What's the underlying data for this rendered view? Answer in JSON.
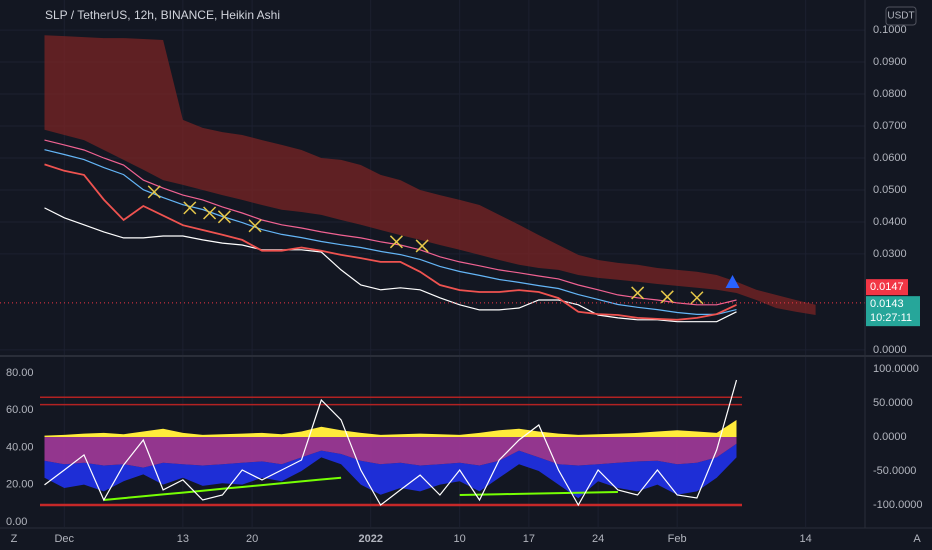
{
  "currency": "USDT",
  "buttons": [
    "Z",
    "A"
  ],
  "chart_data": [
    {
      "type": "line",
      "title": "SLP / TetherUS, 12h, BINANCE, Heikin Ashi",
      "x": [
        -2,
        0,
        2,
        4,
        6,
        8,
        10,
        12,
        14,
        16,
        18,
        20,
        22,
        24,
        26,
        28,
        30,
        32,
        34,
        36,
        38,
        40,
        42,
        44,
        46,
        48,
        50,
        52,
        54,
        56,
        58,
        60,
        62,
        64,
        66,
        68,
        70,
        72,
        74,
        76
      ],
      "xlim": [
        -6.5,
        81
      ],
      "xticks": [
        {
          "value": 0,
          "label": "Dec"
        },
        {
          "value": 12,
          "label": "13"
        },
        {
          "value": 19,
          "label": "20"
        },
        {
          "value": 31,
          "label": "2022"
        },
        {
          "value": 40,
          "label": "10"
        },
        {
          "value": 47,
          "label": "17"
        },
        {
          "value": 54,
          "label": "24"
        },
        {
          "value": 62,
          "label": "Feb"
        },
        {
          "value": 75,
          "label": "14"
        }
      ],
      "ylim": [
        -0.0016,
        0.1094
      ],
      "yticks": [
        {
          "value": 0.1,
          "label": "0.1000"
        },
        {
          "value": 0.09,
          "label": "0.0900"
        },
        {
          "value": 0.08,
          "label": "0.0800"
        },
        {
          "value": 0.07,
          "label": "0.0700"
        },
        {
          "value": 0.06,
          "label": "0.0600"
        },
        {
          "value": 0.05,
          "label": "0.0500"
        },
        {
          "value": 0.04,
          "label": "0.0400"
        },
        {
          "value": 0.03,
          "label": "0.0300"
        },
        {
          "value": 0,
          "label": "0.0000"
        }
      ],
      "grid": true,
      "cloud": {
        "color": "#7a2424",
        "upper": [
          0.0984,
          0.0981,
          0.0978,
          0.0975,
          0.0975,
          0.0972,
          0.0969,
          0.0719,
          0.0694,
          0.0681,
          0.0672,
          0.0656,
          0.0641,
          0.0625,
          0.06,
          0.0594,
          0.0578,
          0.0547,
          0.0531,
          0.05,
          0.0484,
          0.0469,
          0.0453,
          0.0422,
          0.0391,
          0.0359,
          0.0328,
          0.0297,
          0.0281,
          0.0272,
          0.0266,
          0.0256,
          0.025,
          0.0244,
          0.0234,
          0.0213,
          0.0188,
          0.0172,
          0.0156,
          0.0141
        ],
        "lower": [
          0.0688,
          0.0672,
          0.0656,
          0.0625,
          0.0594,
          0.0563,
          0.0531,
          0.0516,
          0.05,
          0.0484,
          0.0469,
          0.0453,
          0.0438,
          0.0431,
          0.0422,
          0.0406,
          0.0391,
          0.0375,
          0.0359,
          0.0344,
          0.0328,
          0.0313,
          0.0297,
          0.0281,
          0.0266,
          0.0256,
          0.025,
          0.0234,
          0.0225,
          0.0219,
          0.0213,
          0.0206,
          0.02,
          0.0194,
          0.0188,
          0.0178,
          0.0156,
          0.0131,
          0.0119,
          0.0109
        ]
      },
      "series": [
        {
          "color": "#f06292",
          "values": [
            0.0656,
            0.0641,
            0.0625,
            0.06,
            0.0578,
            0.0531,
            0.0506,
            0.0484,
            0.0469,
            0.0447,
            0.0428,
            0.0406,
            0.0391,
            0.0381,
            0.0369,
            0.0359,
            0.035,
            0.0338,
            0.0328,
            0.0313,
            0.0291,
            0.0275,
            0.0263,
            0.025,
            0.0241,
            0.0231,
            0.0222,
            0.0203,
            0.0188,
            0.0172,
            0.0163,
            0.0156,
            0.0147,
            0.0141,
            0.0141,
            0.0156,
            null,
            null,
            null,
            null
          ]
        },
        {
          "color": "#64b5f6",
          "values": [
            0.0626,
            0.0611,
            0.0595,
            0.057,
            0.0548,
            0.0501,
            0.0476,
            0.0454,
            0.0439,
            0.0417,
            0.0398,
            0.0376,
            0.0361,
            0.0351,
            0.0339,
            0.0329,
            0.032,
            0.0308,
            0.0298,
            0.0283,
            0.0261,
            0.0245,
            0.0233,
            0.022,
            0.0211,
            0.0201,
            0.0192,
            0.0173,
            0.0158,
            0.0142,
            0.0133,
            0.0126,
            0.0117,
            0.0111,
            0.0111,
            0.0126,
            null,
            null,
            null,
            null
          ]
        },
        {
          "color": "#ffffff",
          "values": [
            0.0444,
            0.0413,
            0.0391,
            0.0369,
            0.035,
            0.035,
            0.0356,
            0.0356,
            0.0344,
            0.0334,
            0.0328,
            0.0313,
            0.0313,
            0.0313,
            0.0306,
            0.025,
            0.0203,
            0.0188,
            0.0194,
            0.0188,
            0.0163,
            0.0141,
            0.0125,
            0.0125,
            0.0131,
            0.0156,
            0.0156,
            0.0141,
            0.0109,
            0.01,
            0.0094,
            0.0094,
            0.0088,
            0.0088,
            0.0088,
            0.0119,
            null,
            null,
            null,
            null
          ]
        },
        {
          "color": "#ef5350",
          "values": [
            0.058,
            0.056,
            0.0547,
            0.047,
            0.0406,
            0.045,
            0.042,
            0.039,
            0.0375,
            0.036,
            0.0344,
            0.031,
            0.031,
            0.032,
            0.031,
            0.0297,
            0.0287,
            0.0275,
            0.0275,
            0.0244,
            0.0203,
            0.0187,
            0.0181,
            0.0181,
            0.0187,
            0.0181,
            0.0162,
            0.0119,
            0.0112,
            0.0109,
            0.01,
            0.0097,
            0.0094,
            0.01,
            0.0112,
            0.0141,
            null,
            null,
            null,
            null
          ]
        }
      ],
      "markers": {
        "color": "#e6c84a",
        "x": [
          9.1,
          12.7,
          14.7,
          16.2,
          19.3,
          33.6,
          36.2,
          58,
          61,
          64
        ],
        "values": [
          0.0494,
          0.0444,
          0.0428,
          0.0416,
          0.0388,
          0.0338,
          0.0325,
          0.0178,
          0.0166,
          0.0163
        ]
      },
      "triangle": {
        "color": "#2962ff",
        "x": 67.6,
        "value": 0.0209
      },
      "last_price": {
        "value": 0.0147,
        "label": "0.0147",
        "color": "#f23645"
      },
      "current_price": {
        "value": 0.0143,
        "label": "0.0143",
        "countdown": "10:27:11",
        "color": "#26a69a"
      }
    },
    {
      "type": "line",
      "x": [
        -2,
        0,
        2,
        4,
        6,
        8,
        10,
        12,
        14,
        16,
        18,
        20,
        22,
        24,
        26,
        28,
        30,
        32,
        34,
        36,
        38,
        40,
        42,
        44,
        46,
        48,
        50,
        52,
        54,
        56,
        58,
        60,
        62,
        64,
        66,
        68,
        70,
        72,
        74,
        76
      ],
      "ylim": [
        -2.7,
        88.6
      ],
      "yticks": [
        {
          "value": 80,
          "label": "80.00"
        },
        {
          "value": 60,
          "label": "60.00"
        },
        {
          "value": 40,
          "label": "40.00"
        },
        {
          "value": 20,
          "label": "20.00"
        },
        {
          "value": 0,
          "label": "0.00"
        }
      ],
      "y2lim": [
        -132.4,
        117.6
      ],
      "y2ticks": [
        {
          "value": 100,
          "label": "100.0000"
        },
        {
          "value": 50,
          "label": "50.0000"
        },
        {
          "value": 0,
          "label": "0.0000"
        },
        {
          "value": -50,
          "label": "-50.0000"
        },
        {
          "value": -100,
          "label": "-100.0000"
        }
      ],
      "areas": {
        "yellow": {
          "color": "#ffeb3b",
          "values": [
            2,
            3,
            5,
            6,
            4,
            8,
            12,
            6,
            3,
            4,
            5,
            6,
            4,
            8,
            15,
            10,
            6,
            3,
            4,
            5,
            4,
            3,
            6,
            10,
            12,
            8,
            5,
            3,
            4,
            5,
            6,
            8,
            10,
            8,
            6,
            25,
            null,
            null,
            null,
            null
          ]
        },
        "purple": {
          "color": "#a23a9a",
          "values": [
            -35,
            -40,
            -38,
            -42,
            -40,
            -45,
            -38,
            -40,
            -42,
            -40,
            -38,
            -36,
            -40,
            -30,
            -20,
            -25,
            -35,
            -40,
            -38,
            -42,
            -40,
            -38,
            -42,
            -35,
            -20,
            -30,
            -40,
            -42,
            -40,
            -38,
            -36,
            -35,
            -40,
            -38,
            -30,
            -10,
            null,
            null,
            null,
            null
          ]
        },
        "blue": {
          "color": "#1f2fe0",
          "values": [
            -60,
            -75,
            -70,
            -80,
            -65,
            -55,
            -70,
            -60,
            -72,
            -68,
            -70,
            -60,
            -65,
            -50,
            -30,
            -40,
            -70,
            -85,
            -75,
            -80,
            -70,
            -65,
            -80,
            -60,
            -40,
            -50,
            -70,
            -90,
            -65,
            -75,
            -80,
            -70,
            -85,
            -80,
            -60,
            -30,
            null,
            null,
            null,
            null
          ]
        }
      },
      "series": [
        {
          "color": "#76ff03",
          "values": [
            null,
            null,
            null,
            11.8,
            12.8,
            13.8,
            14.8,
            15.8,
            16.8,
            17.8,
            18.8,
            19.8,
            20.8,
            21.8,
            22.8,
            23.8,
            null,
            null,
            null,
            null,
            null,
            14.5,
            14.7,
            14.9,
            15.1,
            15.3,
            15.5,
            15.7,
            15.9,
            16.1,
            null,
            null,
            null,
            null,
            null,
            null,
            null,
            null,
            null,
            null
          ]
        },
        {
          "color": "#ffffff",
          "values": [
            19.9,
            27.9,
            36,
            11.8,
            30.6,
            44,
            17.2,
            22.6,
            11.8,
            14.5,
            27.9,
            22.6,
            27.9,
            33.3,
            65.5,
            54.8,
            27.9,
            9.1,
            17.2,
            25.2,
            14.5,
            27.9,
            11.8,
            33.3,
            44,
            52.1,
            27.9,
            9.1,
            27.9,
            17.2,
            14.5,
            27.9,
            14.5,
            12.9,
            38.7,
            76.2,
            null,
            null,
            null,
            null
          ]
        }
      ],
      "levels": [
        {
          "value": 67,
          "color": "#b22222"
        },
        {
          "value": 63,
          "color": "#b22222"
        }
      ],
      "y2levels": [
        {
          "value": -100,
          "color": "#c62828"
        }
      ]
    }
  ]
}
